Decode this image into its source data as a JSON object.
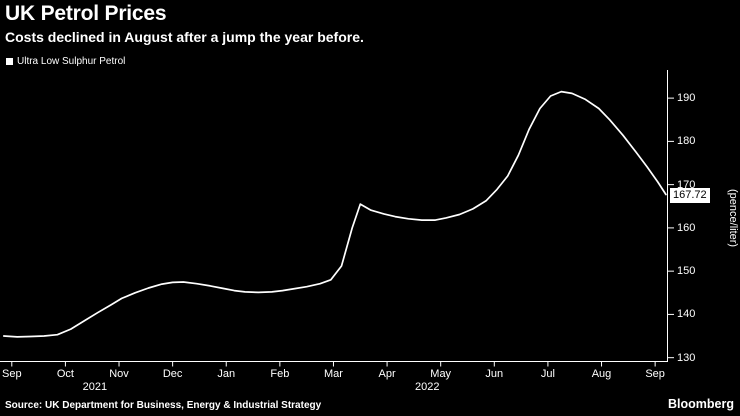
{
  "header": {
    "title": "UK Petrol Prices",
    "subtitle": "Costs declined in August after a jump the year before."
  },
  "legend": {
    "label": "Ultra Low Sulphur Petrol",
    "marker_color": "#ffffff"
  },
  "chart_data": {
    "type": "line",
    "title": "UK Petrol Prices",
    "xlabel": "",
    "ylabel": "(pence/liter)",
    "ylim": [
      129,
      196.5
    ],
    "xlim": [
      -0.22,
      12.24
    ],
    "grid": false,
    "legend_position": "top-left",
    "line_color": "#ffffff",
    "axis_color": "#ffffff",
    "background_color": "#000000",
    "y_ticks": [
      130,
      140,
      150,
      160,
      170,
      180,
      190
    ],
    "x_tick_labels": [
      "Sep",
      "Oct",
      "Nov",
      "Dec",
      "Jan",
      "Feb",
      "Mar",
      "Apr",
      "May",
      "Jun",
      "Jul",
      "Aug",
      "Sep"
    ],
    "year_labels": [
      {
        "label": "2021",
        "month_position": 1.55
      },
      {
        "label": "2022",
        "month_position": 7.75
      }
    ],
    "series": [
      {
        "name": "Ultra Low Sulphur Petrol",
        "unit": "pence/liter",
        "points": [
          [
            -0.15,
            135.0
          ],
          [
            0.1,
            134.8
          ],
          [
            0.35,
            134.9
          ],
          [
            0.6,
            135.0
          ],
          [
            0.85,
            135.3
          ],
          [
            1.1,
            136.6
          ],
          [
            1.35,
            138.5
          ],
          [
            1.6,
            140.4
          ],
          [
            1.85,
            142.2
          ],
          [
            2.05,
            143.7
          ],
          [
            2.3,
            145.0
          ],
          [
            2.55,
            146.1
          ],
          [
            2.8,
            147.0
          ],
          [
            3.0,
            147.4
          ],
          [
            3.2,
            147.5
          ],
          [
            3.45,
            147.1
          ],
          [
            3.7,
            146.6
          ],
          [
            3.95,
            146.0
          ],
          [
            4.15,
            145.5
          ],
          [
            4.35,
            145.2
          ],
          [
            4.6,
            145.1
          ],
          [
            4.85,
            145.2
          ],
          [
            5.05,
            145.5
          ],
          [
            5.25,
            145.9
          ],
          [
            5.5,
            146.4
          ],
          [
            5.75,
            147.1
          ],
          [
            5.95,
            148.0
          ],
          [
            6.15,
            151.2
          ],
          [
            6.35,
            160.0
          ],
          [
            6.5,
            165.5
          ],
          [
            6.7,
            164.1
          ],
          [
            6.95,
            163.2
          ],
          [
            7.15,
            162.6
          ],
          [
            7.4,
            162.1
          ],
          [
            7.65,
            161.8
          ],
          [
            7.9,
            161.8
          ],
          [
            8.1,
            162.3
          ],
          [
            8.35,
            163.1
          ],
          [
            8.6,
            164.4
          ],
          [
            8.85,
            166.3
          ],
          [
            9.05,
            168.9
          ],
          [
            9.25,
            172.0
          ],
          [
            9.45,
            176.8
          ],
          [
            9.65,
            182.8
          ],
          [
            9.85,
            187.6
          ],
          [
            10.05,
            190.5
          ],
          [
            10.25,
            191.5
          ],
          [
            10.45,
            191.1
          ],
          [
            10.7,
            189.7
          ],
          [
            10.95,
            187.6
          ],
          [
            11.15,
            185.0
          ],
          [
            11.4,
            181.4
          ],
          [
            11.65,
            177.4
          ],
          [
            11.85,
            174.1
          ],
          [
            12.05,
            170.6
          ],
          [
            12.2,
            167.72
          ]
        ]
      }
    ],
    "last_value": 167.72,
    "last_value_label": "167.72"
  },
  "footer": {
    "source": "Source: UK Department for Business, Energy & Industrial Strategy",
    "brand": "Bloomberg"
  }
}
